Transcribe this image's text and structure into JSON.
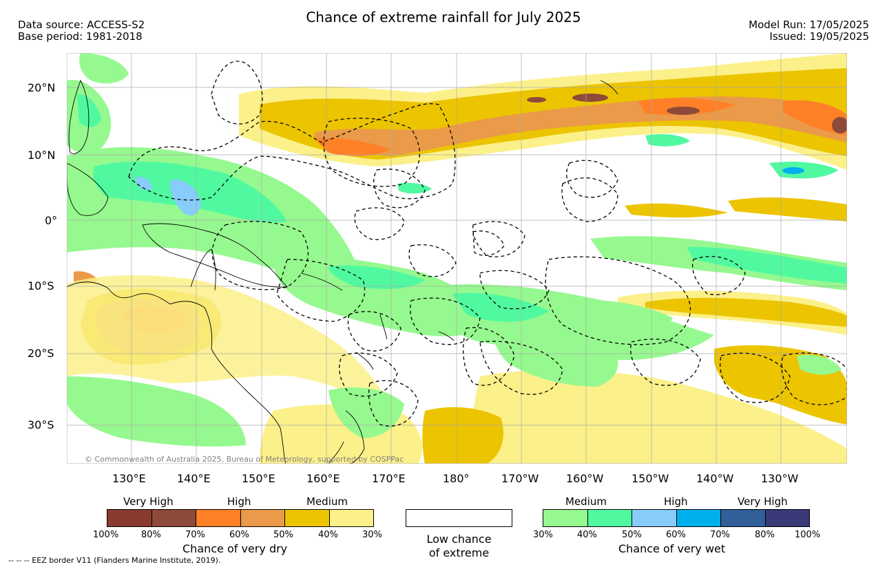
{
  "header": {
    "title": "Chance of extreme rainfall for July 2025",
    "data_source": "Data source: ACCESS-S2",
    "base_period": "Base period: 1981-2018",
    "model_run": "Model Run: 17/05/2025",
    "issued": "Issued: 19/05/2025"
  },
  "map": {
    "lon_ticks": [
      "130°E",
      "140°E",
      "150°E",
      "160°E",
      "170°E",
      "180°",
      "170°W",
      "160°W",
      "150°W",
      "140°W",
      "130°W"
    ],
    "lat_ticks": [
      "20°N",
      "10°N",
      "0°",
      "10°S",
      "20°S",
      "30°S"
    ],
    "copyright": "© Commonwealth of Australia 2025, Bureau of Meteorology, supported by COSPPac",
    "colors": {
      "ocean": "#ffffff",
      "land_outline": "#000000",
      "grid": "#aaaaaa",
      "eez": "#000000"
    }
  },
  "legend": {
    "dry": {
      "headers": [
        "Very High",
        "High",
        "Medium"
      ],
      "colors": [
        "#8b3a2f",
        "#8e4a38",
        "#ff8026",
        "#ea9a48",
        "#ecc400",
        "#fcf08a"
      ],
      "ticks": [
        "100%",
        "80%",
        "70%",
        "60%",
        "50%",
        "40%",
        "30%"
      ],
      "caption": "Chance of very dry"
    },
    "low": {
      "line1": "Low chance",
      "line2": "of extreme"
    },
    "wet": {
      "headers": [
        "Medium",
        "High",
        "Very High"
      ],
      "colors": [
        "#96f98f",
        "#50f9a0",
        "#87ccfa",
        "#00b0ec",
        "#305f99",
        "#3a3a78"
      ],
      "ticks": [
        "30%",
        "40%",
        "50%",
        "60%",
        "70%",
        "80%",
        "100%"
      ],
      "caption": "Chance of very wet"
    }
  },
  "footnote": "--  --  -- EEZ border V11 (Flanders Marine Institute, 2019)."
}
